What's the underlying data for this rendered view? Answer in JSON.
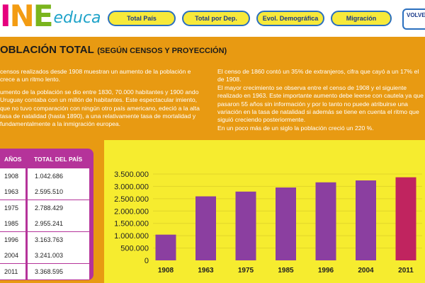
{
  "app": {
    "logo_parts": [
      "I",
      "N",
      "E"
    ],
    "logo_suffix": "educa"
  },
  "nav": {
    "buttons": [
      "Total País",
      "Total por Dep.",
      "Evol. Demográfica",
      "Migración"
    ],
    "back_label": "VOLVE"
  },
  "page": {
    "title": "OBLACIÓN TOTAL",
    "subtitle": "(SEGÚN CENSOS Y PROYECCIÓN)"
  },
  "text": {
    "left": [
      "censos realizados desde 1908 muestran un aumento de la población e crece a un ritmo lento.",
      "umento de la población se dio entre 1830, 70.000 habitantes y 1900 ando Uruguay contaba con un millón de habitantes. Este espectacular imiento, que no tuvo comparación con ningún otro país americano, edeció a la alta tasa de natalidad (hasta 1890), a una relativamente tasa de mortalidad y fundamentalmente a la inmigración europea."
    ],
    "right": [
      "El censo de 1860 contó un 35% de extranjeros, cifra que cayó a un 17% el de 1908.",
      "El mayor crecimiento se observa entre el censo de 1908 y el siguiente realizado en 1963. Este importante aumento debe leerse con cautela ya que pasaron 55 años sin información y por lo tanto no puede atribuirse una variación en la tasa de natalidad si además se tiene en cuenta el ritmo que siguió creciendo posteriormente.",
      "En un poco más de un siglo la población creció un 220 %."
    ]
  },
  "table": {
    "headers": [
      "AÑOS",
      "TOTAL DEL PAÍS"
    ],
    "rows": [
      {
        "year": "1908",
        "total": "1.042.686"
      },
      {
        "year": "1963",
        "total": "2.595.510"
      },
      {
        "year": "1975",
        "total": "2.788.429"
      },
      {
        "year": "1985",
        "total": "2.955.241"
      },
      {
        "year": "1996",
        "total": "3.163.763"
      },
      {
        "year": "2004",
        "total": "3.241.003"
      },
      {
        "year": "2011",
        "total": "3.368.595"
      }
    ]
  },
  "colors": {
    "background": "#e89a12",
    "bar": "#8b3fa0",
    "bar_highlight": "#c0245f",
    "chart_bg": "#f6ec2f",
    "table_bg": "#b5339a"
  },
  "chart_data": {
    "type": "bar",
    "categories": [
      "1908",
      "1963",
      "1975",
      "1985",
      "1996",
      "2004",
      "2011"
    ],
    "values": [
      1042686,
      2595510,
      2788429,
      2955241,
      3163763,
      3241003,
      3368595
    ],
    "highlight_index": 6,
    "yticks": [
      "0",
      "500.000",
      "1.000.000",
      "1.500.000",
      "2.000.000",
      "2.500.000",
      "3.000.000",
      "3.500.000"
    ],
    "ylim": [
      0,
      3500000
    ],
    "grid": true
  }
}
